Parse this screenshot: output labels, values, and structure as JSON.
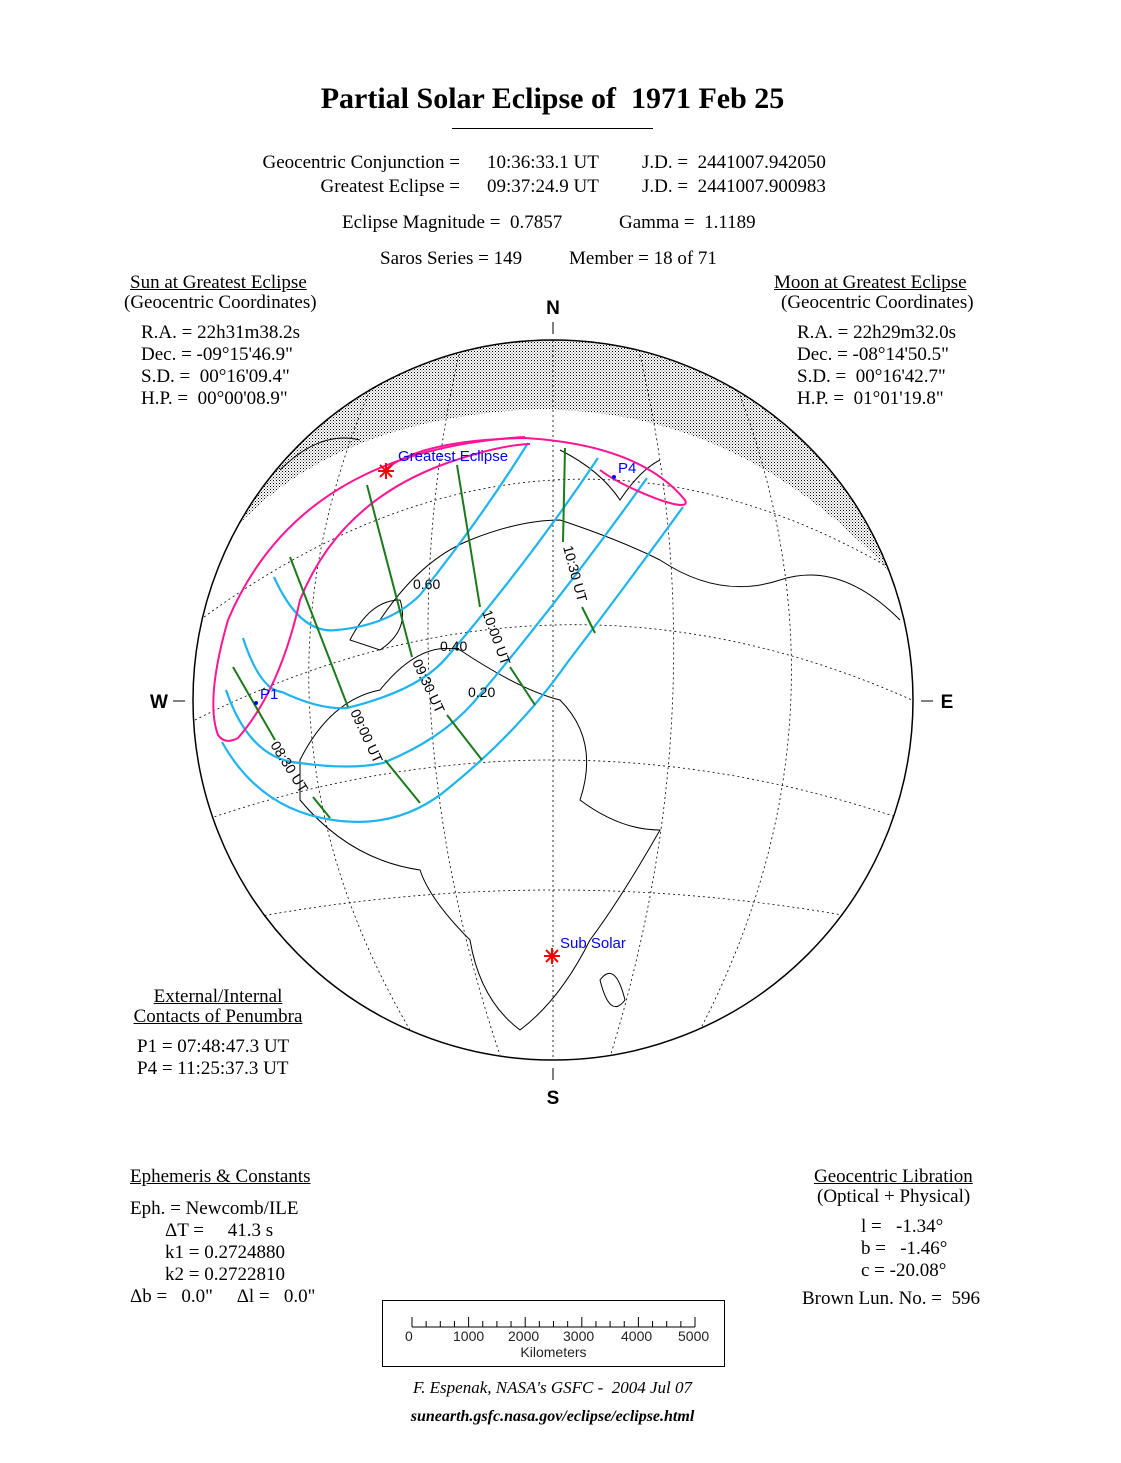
{
  "title": "Partial Solar Eclipse of  1971 Feb 25",
  "header": {
    "conjunction_label": "Geocentric Conjunction =",
    "conjunction_time": "10:36:33.1 UT",
    "conjunction_jd": "J.D. =  2441007.942050",
    "greatest_label": "Greatest Eclipse =",
    "greatest_time": "09:37:24.9 UT",
    "greatest_jd": "J.D. =  2441007.900983",
    "magnitude": "Eclipse Magnitude =  0.7857",
    "gamma": "Gamma =  1.1189",
    "saros": "Saros Series = 149",
    "member": "Member = 18 of 71"
  },
  "sun": {
    "heading": "Sun at Greatest Eclipse",
    "subheading": "(Geocentric Coordinates)",
    "ra": "R.A. = 22h31m38.2s",
    "dec": "Dec. = -09°15'46.9\"",
    "sd": "S.D. =  00°16'09.4\"",
    "hp": "H.P. =  00°00'08.9\""
  },
  "moon": {
    "heading": "Moon at Greatest Eclipse",
    "subheading": "(Geocentric Coordinates)",
    "ra": "R.A. = 22h29m32.0s",
    "dec": "Dec. = -08°14'50.5\"",
    "sd": "S.D. =  00°16'42.7\"",
    "hp": "H.P. =  01°01'19.8\""
  },
  "contacts": {
    "heading1": "External/Internal",
    "heading2": "Contacts of Penumbra",
    "p1": "P1 = 07:48:47.3 UT",
    "p4": "P4 = 11:25:37.3 UT"
  },
  "ephemeris": {
    "heading": "Ephemeris & Constants",
    "eph": "Eph. = Newcomb/ILE",
    "dt": "ΔT =     41.3 s",
    "k1": "k1 = 0.2724880",
    "k2": "k2 = 0.2722810",
    "db_dl": "Δb =   0.0\"     Δl =   0.0\""
  },
  "libration": {
    "heading": "Geocentric Libration",
    "subheading": "(Optical + Physical)",
    "l": "l =   -1.34°",
    "b": "b =   -1.46°",
    "c": "c = -20.08°",
    "brown": "Brown Lun. No. =  596"
  },
  "map": {
    "compass": {
      "n": "N",
      "s": "S",
      "w": "W",
      "e": "E"
    },
    "greatest_eclipse_label": "Greatest Eclipse",
    "sub_solar_label": "Sub Solar",
    "p1_label": "P1",
    "p4_label": "P4",
    "magnitude_labels": [
      "0.60",
      "0.40",
      "0.20"
    ],
    "time_labels": [
      "08:30 UT",
      "09:00 UT",
      "09:30 UT",
      "10:00 UT",
      "10:30 UT"
    ],
    "colors": {
      "penumbra_limit": "#ff1493",
      "magnitude": "#1eb4f0",
      "time": "#1a7a1a",
      "marker": "#ff0000",
      "label": "#0000ff"
    }
  },
  "scale": {
    "ticks": [
      "0",
      "1000",
      "2000",
      "3000",
      "4000",
      "5000"
    ],
    "unit": "Kilometers"
  },
  "credit": "F. Espenak, NASA's GSFC -  2004 Jul 07",
  "url": "sunearth.gsfc.nasa.gov/eclipse/eclipse.html"
}
